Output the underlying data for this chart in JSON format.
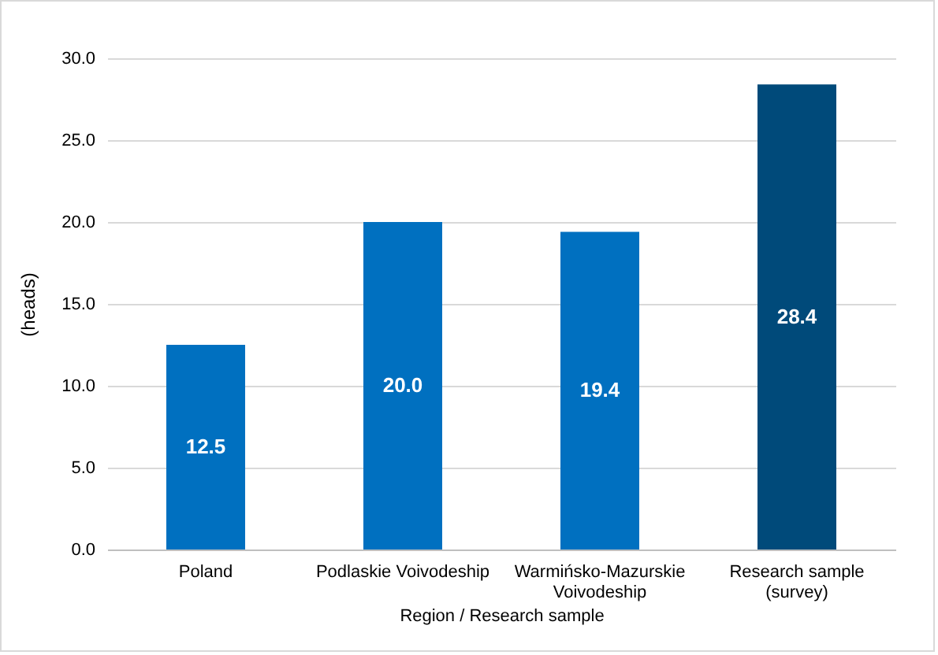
{
  "chart_data": {
    "type": "bar",
    "xlabel": "Region / Research sample",
    "ylabel": "(heads)",
    "categories": [
      "Poland",
      "Podlaskie Voivodeship",
      "Warmińsko-Mazurskie Voivodeship",
      "Research sample (survey)"
    ],
    "values": [
      12.5,
      20.0,
      19.4,
      28.4
    ],
    "colors": [
      "#0070c0",
      "#0070c0",
      "#0070c0",
      "#004a7a"
    ],
    "value_labels": [
      "12.5",
      "20.0",
      "19.4",
      "28.4"
    ],
    "ylim": [
      0,
      30
    ],
    "yticks": [
      {
        "value": 0,
        "label": "0.0"
      },
      {
        "value": 5,
        "label": "5.0"
      },
      {
        "value": 10,
        "label": "10.0"
      },
      {
        "value": 15,
        "label": "15.0"
      },
      {
        "value": 20,
        "label": "20.0"
      },
      {
        "value": 25,
        "label": "25.0"
      },
      {
        "value": 30,
        "label": "30.0"
      }
    ],
    "grid": "y"
  }
}
